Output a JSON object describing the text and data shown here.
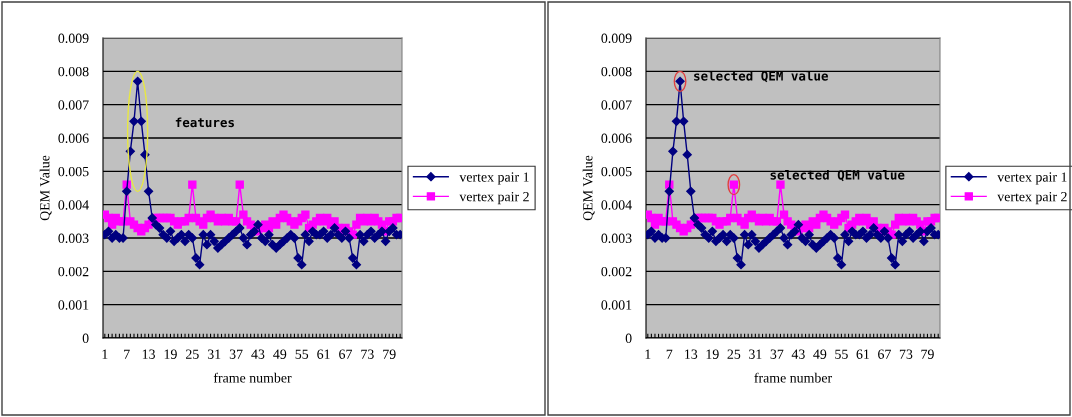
{
  "chart_data": [
    {
      "type": "line",
      "xlabel": "frame number",
      "ylabel": "QEM Value",
      "ylim": [
        0,
        0.009
      ],
      "yticks": [
        0,
        0.001,
        0.002,
        0.003,
        0.004,
        0.005,
        0.006,
        0.007,
        0.008,
        0.009
      ],
      "grid": "y",
      "legend": "right",
      "annotations": [
        "features"
      ],
      "categories": [
        "1",
        null,
        null,
        null,
        null,
        null,
        "7",
        null,
        null,
        null,
        null,
        null,
        "13",
        null,
        null,
        null,
        null,
        null,
        "19",
        null,
        null,
        null,
        null,
        null,
        "25",
        null,
        null,
        null,
        null,
        null,
        "31",
        null,
        null,
        null,
        null,
        null,
        "37",
        null,
        null,
        null,
        null,
        null,
        "43",
        null,
        null,
        null,
        null,
        null,
        "49",
        null,
        null,
        null,
        null,
        null,
        "55",
        null,
        null,
        null,
        null,
        null,
        "61",
        null,
        null,
        null,
        null,
        null,
        "67",
        null,
        null,
        null,
        null,
        null,
        "73",
        null,
        null,
        null,
        null,
        null,
        "79",
        null,
        null,
        null
      ],
      "series": [
        {
          "name": "vertex pair 1",
          "color": "#000080",
          "marker": "diamond",
          "values": [
            0.0031,
            0.0032,
            0.003,
            0.0031,
            0.003,
            0.003,
            0.0044,
            0.0056,
            0.0065,
            0.0077,
            0.0065,
            0.0055,
            0.0044,
            0.0036,
            0.0034,
            0.0033,
            0.0031,
            0.003,
            0.0032,
            0.0029,
            0.003,
            0.0031,
            0.0029,
            0.0031,
            0.003,
            0.0024,
            0.0022,
            0.0031,
            0.0028,
            0.0031,
            0.0029,
            0.0027,
            0.0028,
            0.0029,
            0.003,
            0.0031,
            0.0032,
            0.0033,
            0.003,
            0.0028,
            0.0031,
            0.0032,
            0.0034,
            0.003,
            0.0029,
            0.0031,
            0.0028,
            0.0027,
            0.0028,
            0.0029,
            0.003,
            0.0031,
            0.003,
            0.0024,
            0.0022,
            0.0031,
            0.0029,
            0.0032,
            0.0031,
            0.0031,
            0.0032,
            0.003,
            0.0031,
            0.0033,
            0.0031,
            0.003,
            0.0032,
            0.003,
            0.0024,
            0.0022,
            0.0031,
            0.0029,
            0.0031,
            0.0032,
            0.003,
            0.0031,
            0.0032,
            0.0029,
            0.0032,
            0.0033,
            0.0031,
            0.0031
          ]
        },
        {
          "name": "vertex pair 2",
          "color": "#ff00ff",
          "marker": "square",
          "values": [
            0.0037,
            0.0036,
            0.0034,
            0.0036,
            0.0035,
            0.0035,
            0.0046,
            0.0035,
            0.0034,
            0.0033,
            0.0032,
            0.0033,
            0.0034,
            0.0035,
            0.0036,
            0.0036,
            0.0036,
            0.0036,
            0.0036,
            0.0035,
            0.0034,
            0.0035,
            0.0035,
            0.0036,
            0.0046,
            0.0036,
            0.0035,
            0.0034,
            0.0036,
            0.0037,
            0.0036,
            0.0035,
            0.0036,
            0.0035,
            0.0036,
            0.0035,
            0.0035,
            0.0046,
            0.0037,
            0.0035,
            0.0034,
            0.0033,
            0.0032,
            0.0033,
            0.0034,
            0.0033,
            0.0035,
            0.0034,
            0.0036,
            0.0037,
            0.0036,
            0.0035,
            0.0034,
            0.0035,
            0.0036,
            0.0037,
            0.0033,
            0.0034,
            0.0035,
            0.0036,
            0.0035,
            0.0036,
            0.0034,
            0.0035,
            0.0033,
            0.0032,
            0.0033,
            0.0032,
            0.0031,
            0.0034,
            0.0036,
            0.0035,
            0.0036,
            0.0035,
            0.0036,
            0.0035,
            0.0034,
            0.0032,
            0.0035,
            0.0035,
            0.0036,
            0.0036
          ]
        }
      ]
    },
    {
      "type": "line",
      "xlabel": "frame number",
      "ylabel": "QEM Value",
      "ylim": [
        0,
        0.009
      ],
      "yticks": [
        0,
        0.001,
        0.002,
        0.003,
        0.004,
        0.005,
        0.006,
        0.007,
        0.008,
        0.009
      ],
      "grid": "y",
      "legend": "right",
      "annotations": [
        "selected QEM value",
        "selected QEM value"
      ],
      "categories": [
        "1",
        null,
        null,
        null,
        null,
        null,
        "7",
        null,
        null,
        null,
        null,
        null,
        "13",
        null,
        null,
        null,
        null,
        null,
        "19",
        null,
        null,
        null,
        null,
        null,
        "25",
        null,
        null,
        null,
        null,
        null,
        "31",
        null,
        null,
        null,
        null,
        null,
        "37",
        null,
        null,
        null,
        null,
        null,
        "43",
        null,
        null,
        null,
        null,
        null,
        "49",
        null,
        null,
        null,
        null,
        null,
        "55",
        null,
        null,
        null,
        null,
        null,
        "61",
        null,
        null,
        null,
        null,
        null,
        "67",
        null,
        null,
        null,
        null,
        null,
        "73",
        null,
        null,
        null,
        null,
        null,
        "79",
        null,
        null,
        null
      ],
      "series": [
        {
          "name": "vertex pair 1",
          "color": "#000080",
          "marker": "diamond",
          "values": [
            0.0031,
            0.0032,
            0.003,
            0.0031,
            0.003,
            0.003,
            0.0044,
            0.0056,
            0.0065,
            0.0077,
            0.0065,
            0.0055,
            0.0044,
            0.0036,
            0.0034,
            0.0033,
            0.0031,
            0.003,
            0.0032,
            0.0029,
            0.003,
            0.0031,
            0.0029,
            0.0031,
            0.003,
            0.0024,
            0.0022,
            0.0031,
            0.0028,
            0.0031,
            0.0029,
            0.0027,
            0.0028,
            0.0029,
            0.003,
            0.0031,
            0.0032,
            0.0033,
            0.003,
            0.0028,
            0.0031,
            0.0032,
            0.0034,
            0.003,
            0.0029,
            0.0031,
            0.0028,
            0.0027,
            0.0028,
            0.0029,
            0.003,
            0.0031,
            0.003,
            0.0024,
            0.0022,
            0.0031,
            0.0029,
            0.0032,
            0.0031,
            0.0031,
            0.0032,
            0.003,
            0.0031,
            0.0033,
            0.0031,
            0.003,
            0.0032,
            0.003,
            0.0024,
            0.0022,
            0.0031,
            0.0029,
            0.0031,
            0.0032,
            0.003,
            0.0031,
            0.0032,
            0.0029,
            0.0032,
            0.0033,
            0.0031,
            0.0031
          ]
        },
        {
          "name": "vertex pair 2",
          "color": "#ff00ff",
          "marker": "square",
          "values": [
            0.0037,
            0.0036,
            0.0034,
            0.0036,
            0.0035,
            0.0035,
            0.0046,
            0.0035,
            0.0034,
            0.0033,
            0.0032,
            0.0033,
            0.0034,
            0.0035,
            0.0036,
            0.0036,
            0.0036,
            0.0036,
            0.0036,
            0.0035,
            0.0034,
            0.0035,
            0.0035,
            0.0036,
            0.0046,
            0.0036,
            0.0035,
            0.0034,
            0.0036,
            0.0037,
            0.0036,
            0.0035,
            0.0036,
            0.0035,
            0.0036,
            0.0035,
            0.0035,
            0.0046,
            0.0037,
            0.0035,
            0.0034,
            0.0033,
            0.0032,
            0.0033,
            0.0034,
            0.0033,
            0.0035,
            0.0034,
            0.0036,
            0.0037,
            0.0036,
            0.0035,
            0.0034,
            0.0035,
            0.0036,
            0.0037,
            0.0033,
            0.0034,
            0.0035,
            0.0036,
            0.0035,
            0.0036,
            0.0034,
            0.0035,
            0.0033,
            0.0032,
            0.0033,
            0.0032,
            0.0031,
            0.0034,
            0.0036,
            0.0035,
            0.0036,
            0.0035,
            0.0036,
            0.0035,
            0.0034,
            0.0032,
            0.0035,
            0.0035,
            0.0036,
            0.0036
          ]
        }
      ]
    }
  ]
}
